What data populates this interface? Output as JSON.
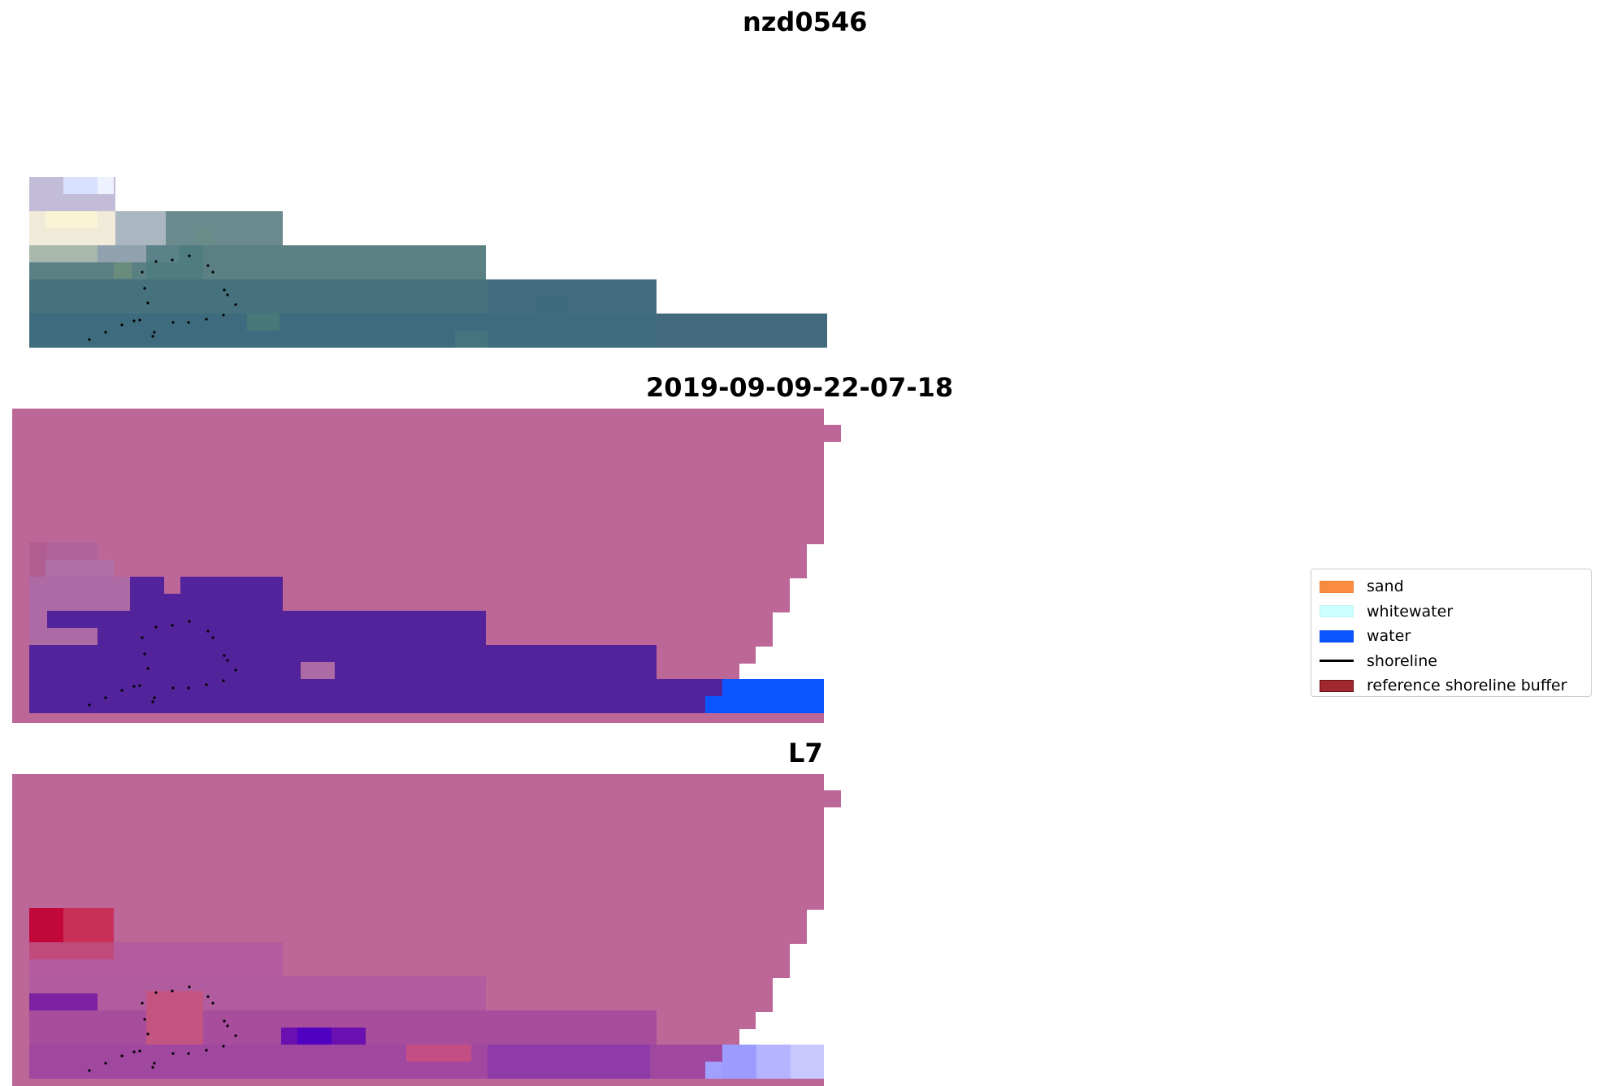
{
  "titles": {
    "site": "nzd0546",
    "date": "2019-09-09-22-07-18",
    "satellite": "L7"
  },
  "legend": {
    "items": [
      {
        "label": "sand",
        "color": "#f98c40",
        "kind": "patch"
      },
      {
        "label": "whitewater",
        "color": "#ccffff",
        "kind": "patch"
      },
      {
        "label": "water",
        "color": "#0a55ff",
        "kind": "patch"
      },
      {
        "label": "shoreline",
        "color": "#000000",
        "kind": "line"
      },
      {
        "label": "reference shoreline buffer",
        "color": "#a02830",
        "kind": "patch"
      }
    ]
  },
  "colors": {
    "no_data_magenta": "#bd6698",
    "classified_water_purple": "#52239a",
    "water_blue": "#0a55ff",
    "rgb_sea_teal": "#3e6e80"
  }
}
